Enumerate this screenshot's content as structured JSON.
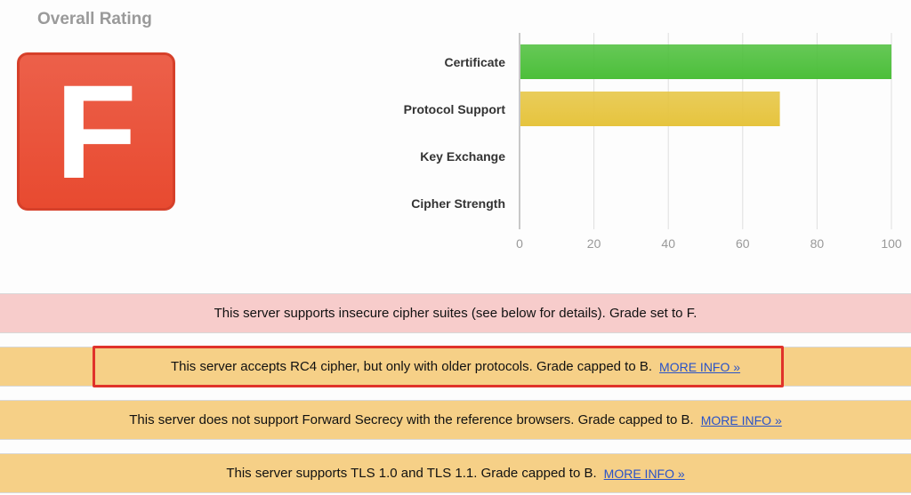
{
  "overall": {
    "title": "Overall Rating",
    "grade": "F",
    "grade_color": "#e84a30"
  },
  "chart_data": {
    "type": "bar",
    "orientation": "horizontal",
    "categories": [
      "Certificate",
      "Protocol Support",
      "Key Exchange",
      "Cipher Strength"
    ],
    "values": [
      100,
      70,
      0,
      0
    ],
    "colors": [
      "#4cbf3a",
      "#e6c43e",
      null,
      null
    ],
    "xlim": [
      0,
      100
    ],
    "xticks": [
      0,
      20,
      40,
      60,
      80,
      100
    ],
    "grid": true
  },
  "banners": [
    {
      "text": "This server supports insecure cipher suites (see below for details). Grade set to F.",
      "link": "",
      "type": "error",
      "highlighted": false
    },
    {
      "text": "This server accepts RC4 cipher, but only with older protocols. Grade capped to B.",
      "link": "MORE INFO »",
      "type": "warning",
      "highlighted": true
    },
    {
      "text": "This server does not support Forward Secrecy with the reference browsers. Grade capped to B.",
      "link": "MORE INFO »",
      "type": "warning",
      "highlighted": false
    },
    {
      "text": "This server supports TLS 1.0 and TLS 1.1. Grade capped to B.",
      "link": "MORE INFO »",
      "type": "warning",
      "highlighted": false
    }
  ]
}
